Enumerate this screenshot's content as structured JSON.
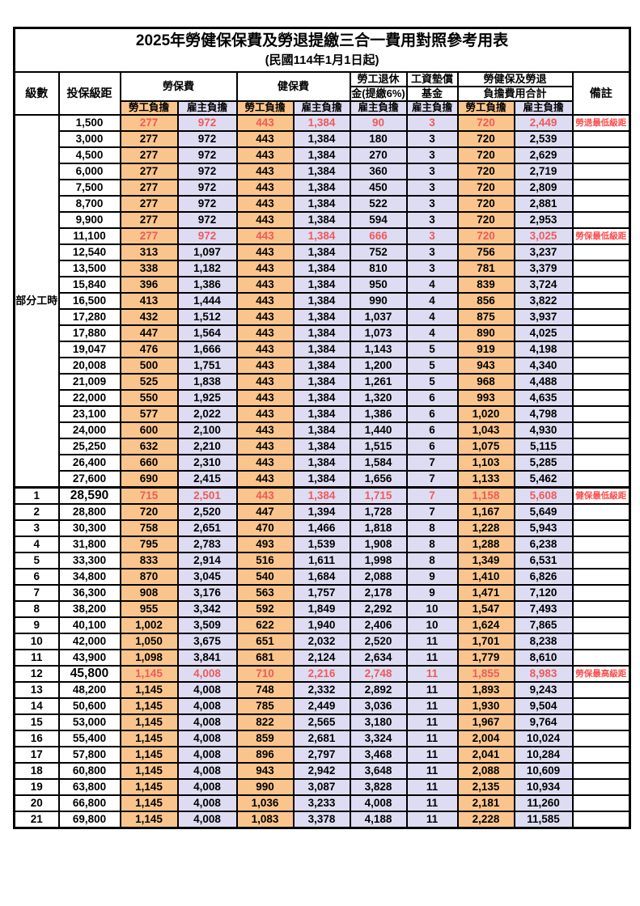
{
  "title": "2025年勞健保保費及勞退提繳三合一費用對照參考用表",
  "subtitle": "(民國114年1月1日起)",
  "colors": {
    "employee_bg": "#FAC58C",
    "employer_bg": "#DEDCF2",
    "highlight_text": "#EF5A5A",
    "remark_text": "#FF4B4B",
    "border": "#000000",
    "page_bg": "#ffffff"
  },
  "header": {
    "level": "級數",
    "bracket": "投保級距",
    "labor_insurance": "勞保費",
    "health_insurance": "健保費",
    "pension_line1": "勞工退休",
    "pension_line2": "金(提繳6%)",
    "wage_fund_line1": "工資墊償",
    "wage_fund_line2": "基金",
    "total_line1": "勞健保及勞退",
    "total_line2": "負擔費用合計",
    "remark": "備註",
    "employee": "勞工負擔",
    "employer": "雇主負擔"
  },
  "part_time": {
    "label": "部分工時",
    "span": 23
  },
  "rows": [
    {
      "level": "",
      "bracket": "1,500",
      "values": [
        "277",
        "972",
        "443",
        "1,384",
        "90",
        "3",
        "720",
        "2,449"
      ],
      "remark": "勞退最低級距",
      "highlight": true,
      "boldBracket": false
    },
    {
      "level": "",
      "bracket": "3,000",
      "values": [
        "277",
        "972",
        "443",
        "1,384",
        "180",
        "3",
        "720",
        "2,539"
      ],
      "remark": "",
      "highlight": false,
      "boldBracket": false
    },
    {
      "level": "",
      "bracket": "4,500",
      "values": [
        "277",
        "972",
        "443",
        "1,384",
        "270",
        "3",
        "720",
        "2,629"
      ],
      "remark": "",
      "highlight": false,
      "boldBracket": false
    },
    {
      "level": "",
      "bracket": "6,000",
      "values": [
        "277",
        "972",
        "443",
        "1,384",
        "360",
        "3",
        "720",
        "2,719"
      ],
      "remark": "",
      "highlight": false,
      "boldBracket": false
    },
    {
      "level": "",
      "bracket": "7,500",
      "values": [
        "277",
        "972",
        "443",
        "1,384",
        "450",
        "3",
        "720",
        "2,809"
      ],
      "remark": "",
      "highlight": false,
      "boldBracket": false
    },
    {
      "level": "",
      "bracket": "8,700",
      "values": [
        "277",
        "972",
        "443",
        "1,384",
        "522",
        "3",
        "720",
        "2,881"
      ],
      "remark": "",
      "highlight": false,
      "boldBracket": false
    },
    {
      "level": "",
      "bracket": "9,900",
      "values": [
        "277",
        "972",
        "443",
        "1,384",
        "594",
        "3",
        "720",
        "2,953"
      ],
      "remark": "",
      "highlight": false,
      "boldBracket": false
    },
    {
      "level": "",
      "bracket": "11,100",
      "values": [
        "277",
        "972",
        "443",
        "1,384",
        "666",
        "3",
        "720",
        "3,025"
      ],
      "remark": "勞保最低級距",
      "highlight": true,
      "boldBracket": false
    },
    {
      "level": "",
      "bracket": "12,540",
      "values": [
        "313",
        "1,097",
        "443",
        "1,384",
        "752",
        "3",
        "756",
        "3,237"
      ],
      "remark": "",
      "highlight": false,
      "boldBracket": false
    },
    {
      "level": "",
      "bracket": "13,500",
      "values": [
        "338",
        "1,182",
        "443",
        "1,384",
        "810",
        "3",
        "781",
        "3,379"
      ],
      "remark": "",
      "highlight": false,
      "boldBracket": false
    },
    {
      "level": "",
      "bracket": "15,840",
      "values": [
        "396",
        "1,386",
        "443",
        "1,384",
        "950",
        "4",
        "839",
        "3,724"
      ],
      "remark": "",
      "highlight": false,
      "boldBracket": false
    },
    {
      "level": "",
      "bracket": "16,500",
      "values": [
        "413",
        "1,444",
        "443",
        "1,384",
        "990",
        "4",
        "856",
        "3,822"
      ],
      "remark": "",
      "highlight": false,
      "boldBracket": false
    },
    {
      "level": "",
      "bracket": "17,280",
      "values": [
        "432",
        "1,512",
        "443",
        "1,384",
        "1,037",
        "4",
        "875",
        "3,937"
      ],
      "remark": "",
      "highlight": false,
      "boldBracket": false
    },
    {
      "level": "",
      "bracket": "17,880",
      "values": [
        "447",
        "1,564",
        "443",
        "1,384",
        "1,073",
        "4",
        "890",
        "4,025"
      ],
      "remark": "",
      "highlight": false,
      "boldBracket": false
    },
    {
      "level": "",
      "bracket": "19,047",
      "values": [
        "476",
        "1,666",
        "443",
        "1,384",
        "1,143",
        "5",
        "919",
        "4,198"
      ],
      "remark": "",
      "highlight": false,
      "boldBracket": false
    },
    {
      "level": "",
      "bracket": "20,008",
      "values": [
        "500",
        "1,751",
        "443",
        "1,384",
        "1,200",
        "5",
        "943",
        "4,340"
      ],
      "remark": "",
      "highlight": false,
      "boldBracket": false
    },
    {
      "level": "",
      "bracket": "21,009",
      "values": [
        "525",
        "1,838",
        "443",
        "1,384",
        "1,261",
        "5",
        "968",
        "4,488"
      ],
      "remark": "",
      "highlight": false,
      "boldBracket": false
    },
    {
      "level": "",
      "bracket": "22,000",
      "values": [
        "550",
        "1,925",
        "443",
        "1,384",
        "1,320",
        "6",
        "993",
        "4,635"
      ],
      "remark": "",
      "highlight": false,
      "boldBracket": false
    },
    {
      "level": "",
      "bracket": "23,100",
      "values": [
        "577",
        "2,022",
        "443",
        "1,384",
        "1,386",
        "6",
        "1,020",
        "4,798"
      ],
      "remark": "",
      "highlight": false,
      "boldBracket": false
    },
    {
      "level": "",
      "bracket": "24,000",
      "values": [
        "600",
        "2,100",
        "443",
        "1,384",
        "1,440",
        "6",
        "1,043",
        "4,930"
      ],
      "remark": "",
      "highlight": false,
      "boldBracket": false
    },
    {
      "level": "",
      "bracket": "25,250",
      "values": [
        "632",
        "2,210",
        "443",
        "1,384",
        "1,515",
        "6",
        "1,075",
        "5,115"
      ],
      "remark": "",
      "highlight": false,
      "boldBracket": false
    },
    {
      "level": "",
      "bracket": "26,400",
      "values": [
        "660",
        "2,310",
        "443",
        "1,384",
        "1,584",
        "7",
        "1,103",
        "5,285"
      ],
      "remark": "",
      "highlight": false,
      "boldBracket": false
    },
    {
      "level": "",
      "bracket": "27,600",
      "values": [
        "690",
        "2,415",
        "443",
        "1,384",
        "1,656",
        "7",
        "1,133",
        "5,462"
      ],
      "remark": "",
      "highlight": false,
      "boldBracket": false
    },
    {
      "level": "1",
      "bracket": "28,590",
      "values": [
        "715",
        "2,501",
        "443",
        "1,384",
        "1,715",
        "7",
        "1,158",
        "5,608"
      ],
      "remark": "健保最低級距",
      "highlight": true,
      "boldBracket": true,
      "thickTop": true
    },
    {
      "level": "2",
      "bracket": "28,800",
      "values": [
        "720",
        "2,520",
        "447",
        "1,394",
        "1,728",
        "7",
        "1,167",
        "5,649"
      ],
      "remark": "",
      "highlight": false,
      "boldBracket": false
    },
    {
      "level": "3",
      "bracket": "30,300",
      "values": [
        "758",
        "2,651",
        "470",
        "1,466",
        "1,818",
        "8",
        "1,228",
        "5,943"
      ],
      "remark": "",
      "highlight": false,
      "boldBracket": false
    },
    {
      "level": "4",
      "bracket": "31,800",
      "values": [
        "795",
        "2,783",
        "493",
        "1,539",
        "1,908",
        "8",
        "1,288",
        "6,238"
      ],
      "remark": "",
      "highlight": false,
      "boldBracket": false
    },
    {
      "level": "5",
      "bracket": "33,300",
      "values": [
        "833",
        "2,914",
        "516",
        "1,611",
        "1,998",
        "8",
        "1,349",
        "6,531"
      ],
      "remark": "",
      "highlight": false,
      "boldBracket": false
    },
    {
      "level": "6",
      "bracket": "34,800",
      "values": [
        "870",
        "3,045",
        "540",
        "1,684",
        "2,088",
        "9",
        "1,410",
        "6,826"
      ],
      "remark": "",
      "highlight": false,
      "boldBracket": false
    },
    {
      "level": "7",
      "bracket": "36,300",
      "values": [
        "908",
        "3,176",
        "563",
        "1,757",
        "2,178",
        "9",
        "1,471",
        "7,120"
      ],
      "remark": "",
      "highlight": false,
      "boldBracket": false
    },
    {
      "level": "8",
      "bracket": "38,200",
      "values": [
        "955",
        "3,342",
        "592",
        "1,849",
        "2,292",
        "10",
        "1,547",
        "7,493"
      ],
      "remark": "",
      "highlight": false,
      "boldBracket": false
    },
    {
      "level": "9",
      "bracket": "40,100",
      "values": [
        "1,002",
        "3,509",
        "622",
        "1,940",
        "2,406",
        "10",
        "1,624",
        "7,865"
      ],
      "remark": "",
      "highlight": false,
      "boldBracket": false
    },
    {
      "level": "10",
      "bracket": "42,000",
      "values": [
        "1,050",
        "3,675",
        "651",
        "2,032",
        "2,520",
        "11",
        "1,701",
        "8,238"
      ],
      "remark": "",
      "highlight": false,
      "boldBracket": false
    },
    {
      "level": "11",
      "bracket": "43,900",
      "values": [
        "1,098",
        "3,841",
        "681",
        "2,124",
        "2,634",
        "11",
        "1,779",
        "8,610"
      ],
      "remark": "",
      "highlight": false,
      "boldBracket": false
    },
    {
      "level": "12",
      "bracket": "45,800",
      "values": [
        "1,145",
        "4,008",
        "710",
        "2,216",
        "2,748",
        "11",
        "1,855",
        "8,983"
      ],
      "remark": "勞保最高級距",
      "highlight": true,
      "boldBracket": true
    },
    {
      "level": "13",
      "bracket": "48,200",
      "values": [
        "1,145",
        "4,008",
        "748",
        "2,332",
        "2,892",
        "11",
        "1,893",
        "9,243"
      ],
      "remark": "",
      "highlight": false,
      "boldBracket": false
    },
    {
      "level": "14",
      "bracket": "50,600",
      "values": [
        "1,145",
        "4,008",
        "785",
        "2,449",
        "3,036",
        "11",
        "1,930",
        "9,504"
      ],
      "remark": "",
      "highlight": false,
      "boldBracket": false
    },
    {
      "level": "15",
      "bracket": "53,000",
      "values": [
        "1,145",
        "4,008",
        "822",
        "2,565",
        "3,180",
        "11",
        "1,967",
        "9,764"
      ],
      "remark": "",
      "highlight": false,
      "boldBracket": false
    },
    {
      "level": "16",
      "bracket": "55,400",
      "values": [
        "1,145",
        "4,008",
        "859",
        "2,681",
        "3,324",
        "11",
        "2,004",
        "10,024"
      ],
      "remark": "",
      "highlight": false,
      "boldBracket": false
    },
    {
      "level": "17",
      "bracket": "57,800",
      "values": [
        "1,145",
        "4,008",
        "896",
        "2,797",
        "3,468",
        "11",
        "2,041",
        "10,284"
      ],
      "remark": "",
      "highlight": false,
      "boldBracket": false
    },
    {
      "level": "18",
      "bracket": "60,800",
      "values": [
        "1,145",
        "4,008",
        "943",
        "2,942",
        "3,648",
        "11",
        "2,088",
        "10,609"
      ],
      "remark": "",
      "highlight": false,
      "boldBracket": false
    },
    {
      "level": "19",
      "bracket": "63,800",
      "values": [
        "1,145",
        "4,008",
        "990",
        "3,087",
        "3,828",
        "11",
        "2,135",
        "10,934"
      ],
      "remark": "",
      "highlight": false,
      "boldBracket": false
    },
    {
      "level": "20",
      "bracket": "66,800",
      "values": [
        "1,145",
        "4,008",
        "1,036",
        "3,233",
        "4,008",
        "11",
        "2,181",
        "11,260"
      ],
      "remark": "",
      "highlight": false,
      "boldBracket": false
    },
    {
      "level": "21",
      "bracket": "69,800",
      "values": [
        "1,145",
        "4,008",
        "1,083",
        "3,378",
        "4,188",
        "11",
        "2,228",
        "11,585"
      ],
      "remark": "",
      "highlight": false,
      "boldBracket": false
    }
  ]
}
